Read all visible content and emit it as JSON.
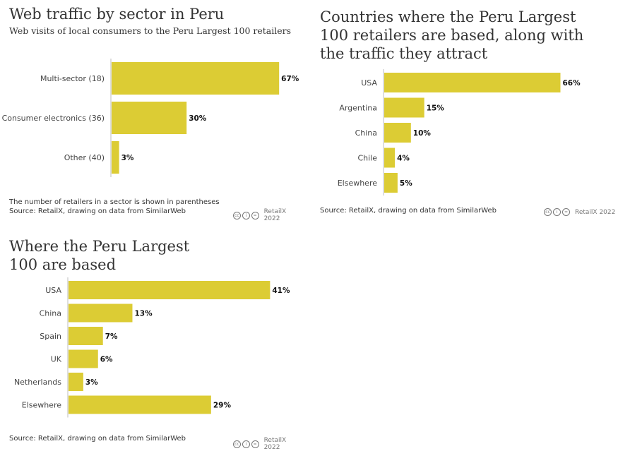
{
  "bar_color": "#dccc34",
  "axis_color": "#bdbdbd",
  "credit": "RetailX 2022",
  "license_icons": [
    "cc-icon",
    "by-icon",
    "nd-icon"
  ],
  "chart_data": [
    {
      "type": "bar",
      "orientation": "horizontal",
      "title": "Web traffic by sector in Peru",
      "subtitle": "Web visits of local consumers to the Peru Largest 100 retailers",
      "categories": [
        "Multi-sector (18)",
        "Consumer electronics (36)",
        "Other (40)"
      ],
      "values": [
        67,
        30,
        3
      ],
      "value_labels": [
        "67%",
        "30%",
        "3%"
      ],
      "xlim": [
        0,
        100
      ],
      "note": "The number of retailers in a sector is shown in parentheses",
      "source": "Source: RetailX, drawing on data from SimilarWeb"
    },
    {
      "type": "bar",
      "orientation": "horizontal",
      "title": "Countries where the Peru Largest 100 retailers are based, along with the traffic they attract",
      "categories": [
        "USA",
        "Argentina",
        "China",
        "Chile",
        "Elsewhere"
      ],
      "values": [
        66,
        15,
        10,
        4,
        5
      ],
      "value_labels": [
        "66%",
        "15%",
        "10%",
        "4%",
        "5%"
      ],
      "xlim": [
        0,
        100
      ],
      "source": "Source: RetailX, drawing on data from SimilarWeb"
    },
    {
      "type": "bar",
      "orientation": "horizontal",
      "title": "Where the Peru Largest 100 are based",
      "categories": [
        "USA",
        "China",
        "Spain",
        "UK",
        "Netherlands",
        "Elsewhere"
      ],
      "values": [
        41,
        13,
        7,
        6,
        3,
        29
      ],
      "value_labels": [
        "41%",
        "13%",
        "7%",
        "6%",
        "3%",
        "29%"
      ],
      "xlim": [
        0,
        100
      ],
      "source": "Source: RetailX, drawing on data from SimilarWeb"
    }
  ]
}
